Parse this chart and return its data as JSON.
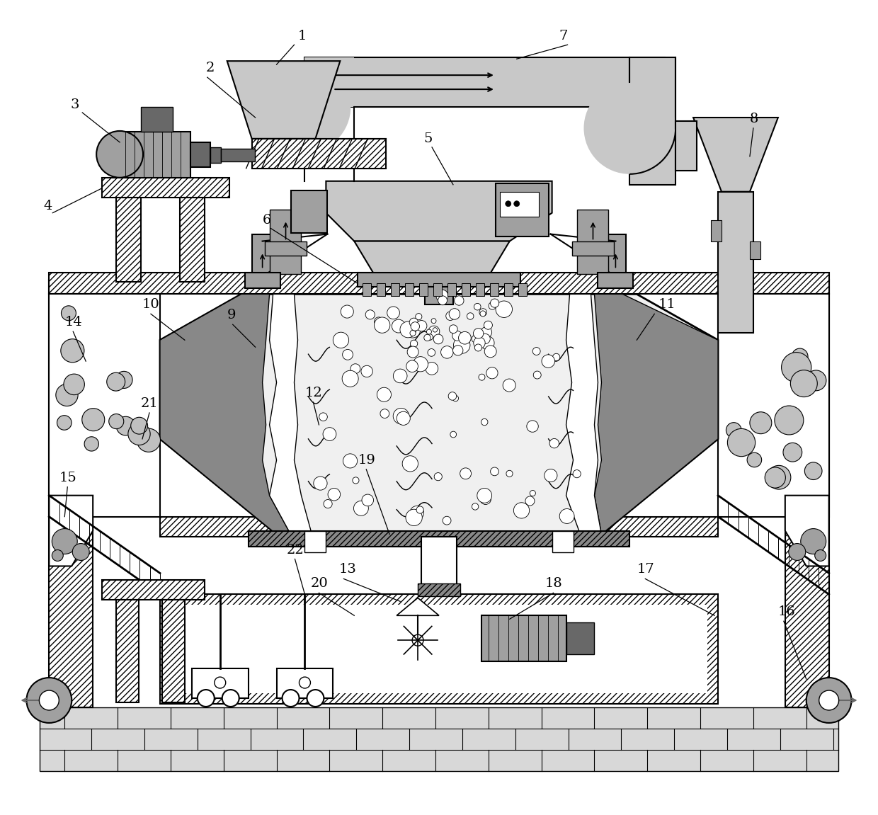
{
  "bg_color": "#ffffff",
  "lc": "#000000",
  "gl": "#c8c8c8",
  "gm": "#a0a0a0",
  "gd": "#686868"
}
